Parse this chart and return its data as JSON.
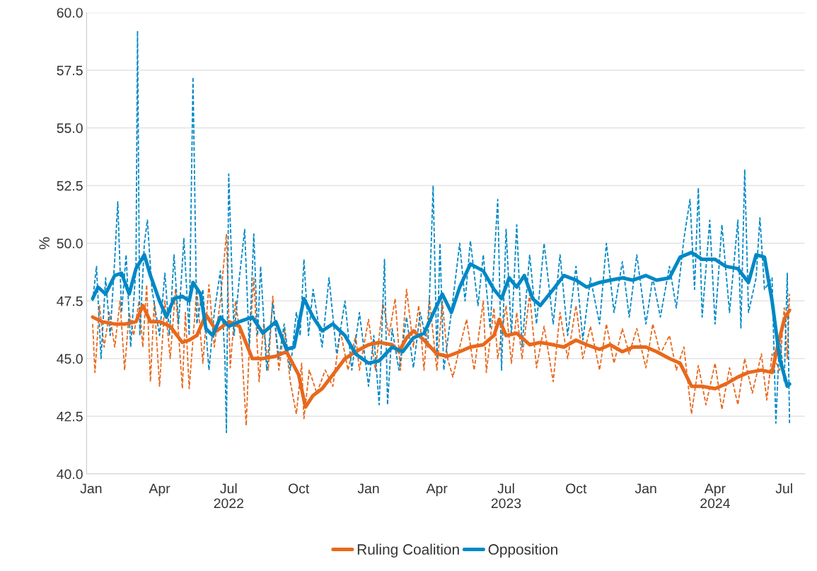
{
  "chart_data": {
    "type": "line",
    "ylabel": "%",
    "ylim": [
      40,
      60
    ],
    "yticks": [
      {
        "value": 40,
        "label": "40.0"
      },
      {
        "value": 42.5,
        "label": "42.5"
      },
      {
        "value": 45,
        "label": "45.0"
      },
      {
        "value": 47.5,
        "label": "47.5"
      },
      {
        "value": 50,
        "label": "50.0"
      },
      {
        "value": 52.5,
        "label": "52.5"
      },
      {
        "value": 55,
        "label": "55.0"
      },
      {
        "value": 57.5,
        "label": "57.5"
      },
      {
        "value": 60,
        "label": "60.0"
      }
    ],
    "xlim": [
      "2021-12-26",
      "2024-07-28"
    ],
    "xticks": [
      {
        "value": "2022-01-01",
        "label": "Jan"
      },
      {
        "value": "2022-04-01",
        "label": "Apr"
      },
      {
        "value": "2022-07-01",
        "label": "Jul\n2022"
      },
      {
        "value": "2022-10-01",
        "label": "Oct"
      },
      {
        "value": "2023-01-01",
        "label": "Jan"
      },
      {
        "value": "2023-04-01",
        "label": "Apr"
      },
      {
        "value": "2023-07-01",
        "label": "Jul\n2023"
      },
      {
        "value": "2023-10-01",
        "label": "Oct"
      },
      {
        "value": "2024-01-01",
        "label": "Jan"
      },
      {
        "value": "2024-04-01",
        "label": "Apr\n2024"
      },
      {
        "value": "2024-07-01",
        "label": "Jul"
      }
    ],
    "grid": "y",
    "legend": "bottom",
    "marker": "none",
    "series": [
      {
        "color": "#e8681c",
        "line_style": "dashed",
        "x": [
          "2022-01-03",
          "2022-01-06",
          "2022-01-12",
          "2022-01-18",
          "2022-01-25",
          "2022-02-01",
          "2022-02-08",
          "2022-02-14",
          "2022-02-20",
          "2022-02-26",
          "2022-03-05",
          "2022-03-10",
          "2022-03-15",
          "2022-03-20",
          "2022-03-25",
          "2022-04-01",
          "2022-04-08",
          "2022-04-15",
          "2022-04-22",
          "2022-05-01",
          "2022-05-05",
          "2022-05-10",
          "2022-05-20",
          "2022-05-28",
          "2022-06-05",
          "2022-06-12",
          "2022-06-20",
          "2022-06-28",
          "2022-07-03",
          "2022-07-10",
          "2022-07-18",
          "2022-07-24",
          "2022-07-28",
          "2022-08-03",
          "2022-08-10",
          "2022-08-16",
          "2022-08-22",
          "2022-08-28",
          "2022-09-05",
          "2022-09-12",
          "2022-09-20",
          "2022-09-28",
          "2022-10-05",
          "2022-10-08",
          "2022-10-15",
          "2022-10-25",
          "2022-11-05",
          "2022-11-15",
          "2022-11-25",
          "2022-12-05",
          "2022-12-15",
          "2022-12-20",
          "2023-01-01",
          "2023-01-10",
          "2023-01-20",
          "2023-01-28",
          "2023-02-05",
          "2023-02-12",
          "2023-02-20",
          "2023-03-01",
          "2023-03-08",
          "2023-03-15",
          "2023-03-22",
          "2023-04-01",
          "2023-04-08",
          "2023-04-15",
          "2023-04-22",
          "2023-05-01",
          "2023-05-10",
          "2023-05-20",
          "2023-06-01",
          "2023-06-05",
          "2023-06-15",
          "2023-06-20",
          "2023-07-01",
          "2023-07-08",
          "2023-07-15",
          "2023-07-22",
          "2023-08-01",
          "2023-08-10",
          "2023-08-20",
          "2023-09-01",
          "2023-09-10",
          "2023-09-20",
          "2023-10-01",
          "2023-10-10",
          "2023-10-20",
          "2023-11-01",
          "2023-11-10",
          "2023-11-20",
          "2023-12-01",
          "2023-12-10",
          "2023-12-20",
          "2024-01-01",
          "2024-01-10",
          "2024-01-20",
          "2024-02-01",
          "2024-02-10",
          "2024-02-20",
          "2024-03-01",
          "2024-03-10",
          "2024-03-20",
          "2024-04-01",
          "2024-04-10",
          "2024-04-20",
          "2024-05-01",
          "2024-05-10",
          "2024-05-20",
          "2024-06-01",
          "2024-06-08",
          "2024-06-15",
          "2024-06-25",
          "2024-07-01",
          "2024-07-05",
          "2024-07-08"
        ],
        "values": [
          46.5,
          44.4,
          47.3,
          45.5,
          47.0,
          45.5,
          47.5,
          44.5,
          47.0,
          46.0,
          47.5,
          45.5,
          48.2,
          44.0,
          47.5,
          43.8,
          47.5,
          45.0,
          48.0,
          43.7,
          47.0,
          43.7,
          48.0,
          44.8,
          48.2,
          45.5,
          47.5,
          50.4,
          44.6,
          47.5,
          45.5,
          42.1,
          45.5,
          48.5,
          44.0,
          46.5,
          44.5,
          47.7,
          44.5,
          46.3,
          44.0,
          42.6,
          44.8,
          42.4,
          44.5,
          43.5,
          44.5,
          43.8,
          46.2,
          44.5,
          46.0,
          44.5,
          46.7,
          44.5,
          47.4,
          46.0,
          47.6,
          44.5,
          48.0,
          45.5,
          47.3,
          44.5,
          47.6,
          44.5,
          47.5,
          45.0,
          44.2,
          45.5,
          46.7,
          44.5,
          47.5,
          44.4,
          47.2,
          45.0,
          47.3,
          44.8,
          47.0,
          45.0,
          47.8,
          44.6,
          46.4,
          44.0,
          47.0,
          45.0,
          47.3,
          45.0,
          46.4,
          44.5,
          46.5,
          44.8,
          46.3,
          45.2,
          46.3,
          44.6,
          46.5,
          45.2,
          46.0,
          44.5,
          45.5,
          42.6,
          44.7,
          43.0,
          44.8,
          42.8,
          44.6,
          43.0,
          45.0,
          43.5,
          45.2,
          43.2,
          45.2,
          44.5,
          47.2,
          45.0,
          47.8
        ]
      },
      {
        "color": "#0088c6",
        "line_style": "dashed",
        "x": [
          "2022-01-03",
          "2022-01-08",
          "2022-01-14",
          "2022-01-20",
          "2022-01-26",
          "2022-02-01",
          "2022-02-05",
          "2022-02-10",
          "2022-02-16",
          "2022-02-22",
          "2022-03-01",
          "2022-03-03",
          "2022-03-06",
          "2022-03-12",
          "2022-03-16",
          "2022-03-22",
          "2022-04-01",
          "2022-04-08",
          "2022-04-14",
          "2022-04-20",
          "2022-04-26",
          "2022-05-03",
          "2022-05-10",
          "2022-05-15",
          "2022-05-20",
          "2022-05-28",
          "2022-06-05",
          "2022-06-12",
          "2022-06-20",
          "2022-06-26",
          "2022-06-28",
          "2022-07-01",
          "2022-07-08",
          "2022-07-15",
          "2022-07-22",
          "2022-07-28",
          "2022-08-03",
          "2022-08-08",
          "2022-08-12",
          "2022-08-20",
          "2022-08-28",
          "2022-09-05",
          "2022-09-12",
          "2022-09-20",
          "2022-09-28",
          "2022-10-03",
          "2022-10-08",
          "2022-10-14",
          "2022-10-20",
          "2022-11-01",
          "2022-11-10",
          "2022-11-20",
          "2022-12-01",
          "2022-12-10",
          "2022-12-20",
          "2023-01-01",
          "2023-01-08",
          "2023-01-15",
          "2023-01-22",
          "2023-01-26",
          "2023-02-01",
          "2023-02-10",
          "2023-02-20",
          "2023-03-01",
          "2023-03-10",
          "2023-03-20",
          "2023-03-27",
          "2023-04-01",
          "2023-04-05",
          "2023-04-10",
          "2023-04-20",
          "2023-05-01",
          "2023-05-08",
          "2023-05-15",
          "2023-05-25",
          "2023-06-01",
          "2023-06-10",
          "2023-06-20",
          "2023-06-25",
          "2023-07-01",
          "2023-07-08",
          "2023-07-15",
          "2023-07-22",
          "2023-08-01",
          "2023-08-10",
          "2023-08-20",
          "2023-09-01",
          "2023-09-10",
          "2023-09-20",
          "2023-10-01",
          "2023-10-10",
          "2023-10-20",
          "2023-11-01",
          "2023-11-10",
          "2023-11-20",
          "2023-12-01",
          "2023-12-10",
          "2023-12-20",
          "2024-01-01",
          "2024-01-10",
          "2024-01-20",
          "2024-02-01",
          "2024-02-10",
          "2024-02-20",
          "2024-02-28",
          "2024-03-05",
          "2024-03-10",
          "2024-03-15",
          "2024-03-25",
          "2024-04-01",
          "2024-04-10",
          "2024-04-20",
          "2024-05-01",
          "2024-05-05",
          "2024-05-10",
          "2024-05-15",
          "2024-05-25",
          "2024-05-30",
          "2024-06-05",
          "2024-06-15",
          "2024-06-20",
          "2024-06-25",
          "2024-07-01",
          "2024-07-05",
          "2024-07-08"
        ],
        "values": [
          47.5,
          49.0,
          45.0,
          48.5,
          46.0,
          49.3,
          51.8,
          47.0,
          49.5,
          45.5,
          49.0,
          59.2,
          46.0,
          50.0,
          51.0,
          48.0,
          46.0,
          48.7,
          46.0,
          49.5,
          46.5,
          50.2,
          46.0,
          57.2,
          46.5,
          48.0,
          44.5,
          47.0,
          48.8,
          45.0,
          41.8,
          53.0,
          46.0,
          48.5,
          50.6,
          45.5,
          50.4,
          46.0,
          49.0,
          44.5,
          47.4,
          45.0,
          46.5,
          44.5,
          47.0,
          46.0,
          49.3,
          46.0,
          48.0,
          45.5,
          48.5,
          45.2,
          47.5,
          44.5,
          47.0,
          43.8,
          46.0,
          43.0,
          49.3,
          43.0,
          46.3,
          44.5,
          46.8,
          44.6,
          47.0,
          45.5,
          52.5,
          45.0,
          50.0,
          44.5,
          47.0,
          50.0,
          47.5,
          50.1,
          47.3,
          49.5,
          46.3,
          51.9,
          44.5,
          50.6,
          46.0,
          50.8,
          45.5,
          49.5,
          46.5,
          50.0,
          46.5,
          49.5,
          46.0,
          49.0,
          45.8,
          48.5,
          46.5,
          50.0,
          47.0,
          49.2,
          46.8,
          49.5,
          46.5,
          48.5,
          46.8,
          49.0,
          47.2,
          50.2,
          51.9,
          48.0,
          52.4,
          46.8,
          51.0,
          46.5,
          50.8,
          47.0,
          51.0,
          46.3,
          53.2,
          47.0,
          48.5,
          51.1,
          48.0,
          48.5,
          42.2,
          46.0,
          44.0,
          48.7,
          42.2
        ]
      },
      {
        "name": "Ruling Coalition",
        "color": "#e8681c",
        "line_style": "solid",
        "x": [
          "2022-01-03",
          "2022-01-15",
          "2022-02-01",
          "2022-02-15",
          "2022-03-01",
          "2022-03-10",
          "2022-03-20",
          "2022-04-01",
          "2022-04-15",
          "2022-05-01",
          "2022-05-10",
          "2022-05-20",
          "2022-06-01",
          "2022-06-15",
          "2022-07-01",
          "2022-07-15",
          "2022-08-01",
          "2022-08-15",
          "2022-09-01",
          "2022-09-15",
          "2022-10-01",
          "2022-10-10",
          "2022-10-20",
          "2022-11-01",
          "2022-11-15",
          "2022-12-01",
          "2022-12-15",
          "2023-01-01",
          "2023-01-15",
          "2023-02-01",
          "2023-02-10",
          "2023-02-20",
          "2023-03-01",
          "2023-03-15",
          "2023-04-01",
          "2023-04-15",
          "2023-05-01",
          "2023-05-15",
          "2023-06-01",
          "2023-06-15",
          "2023-06-22",
          "2023-07-01",
          "2023-07-15",
          "2023-08-01",
          "2023-08-15",
          "2023-09-01",
          "2023-09-15",
          "2023-10-01",
          "2023-10-15",
          "2023-11-01",
          "2023-11-15",
          "2023-12-01",
          "2023-12-15",
          "2024-01-01",
          "2024-01-15",
          "2024-02-01",
          "2024-02-15",
          "2024-03-01",
          "2024-03-15",
          "2024-04-01",
          "2024-04-15",
          "2024-05-01",
          "2024-05-15",
          "2024-06-01",
          "2024-06-15",
          "2024-06-22",
          "2024-07-01",
          "2024-07-08"
        ],
        "values": [
          46.8,
          46.6,
          46.5,
          46.5,
          46.6,
          47.3,
          46.6,
          46.6,
          46.4,
          45.7,
          45.8,
          46.0,
          46.9,
          46.2,
          46.6,
          46.4,
          45.0,
          45.0,
          45.1,
          45.3,
          44.3,
          42.9,
          43.4,
          43.7,
          44.3,
          45.0,
          45.3,
          45.6,
          45.7,
          45.6,
          45.3,
          45.9,
          46.2,
          45.8,
          45.2,
          45.1,
          45.3,
          45.5,
          45.6,
          46.0,
          46.7,
          46.0,
          46.1,
          45.6,
          45.7,
          45.6,
          45.5,
          45.8,
          45.6,
          45.4,
          45.6,
          45.3,
          45.5,
          45.5,
          45.3,
          45.0,
          44.8,
          43.8,
          43.8,
          43.7,
          43.9,
          44.2,
          44.4,
          44.5,
          44.4,
          45.5,
          46.7,
          47.1
        ]
      },
      {
        "name": "Opposition",
        "color": "#0088c6",
        "line_style": "solid",
        "x": [
          "2022-01-03",
          "2022-01-10",
          "2022-01-20",
          "2022-02-01",
          "2022-02-10",
          "2022-02-20",
          "2022-03-01",
          "2022-03-12",
          "2022-03-20",
          "2022-04-01",
          "2022-04-10",
          "2022-04-20",
          "2022-05-01",
          "2022-05-10",
          "2022-05-15",
          "2022-05-25",
          "2022-06-01",
          "2022-06-10",
          "2022-06-20",
          "2022-07-01",
          "2022-07-15",
          "2022-08-01",
          "2022-08-15",
          "2022-09-01",
          "2022-09-15",
          "2022-09-25",
          "2022-10-08",
          "2022-10-20",
          "2022-11-01",
          "2022-11-15",
          "2022-12-01",
          "2022-12-15",
          "2023-01-01",
          "2023-01-15",
          "2023-02-01",
          "2023-02-15",
          "2023-03-01",
          "2023-03-15",
          "2023-04-01",
          "2023-04-08",
          "2023-04-20",
          "2023-05-01",
          "2023-05-15",
          "2023-06-01",
          "2023-06-15",
          "2023-06-25",
          "2023-07-05",
          "2023-07-15",
          "2023-07-25",
          "2023-08-05",
          "2023-08-15",
          "2023-09-01",
          "2023-09-15",
          "2023-10-01",
          "2023-10-15",
          "2023-11-01",
          "2023-11-15",
          "2023-12-01",
          "2023-12-15",
          "2024-01-01",
          "2024-01-15",
          "2024-02-01",
          "2024-02-15",
          "2024-03-01",
          "2024-03-15",
          "2024-04-01",
          "2024-04-15",
          "2024-05-01",
          "2024-05-15",
          "2024-05-25",
          "2024-06-05",
          "2024-06-15",
          "2024-06-25",
          "2024-07-05",
          "2024-07-08"
        ],
        "values": [
          47.6,
          48.1,
          47.8,
          48.6,
          48.7,
          47.8,
          48.9,
          49.5,
          48.6,
          47.5,
          46.8,
          47.6,
          47.7,
          47.5,
          48.3,
          47.8,
          46.3,
          46.0,
          46.8,
          46.4,
          46.6,
          46.8,
          46.1,
          46.6,
          45.4,
          45.5,
          47.6,
          46.8,
          46.2,
          46.5,
          46.0,
          45.2,
          44.8,
          44.9,
          45.5,
          45.3,
          45.9,
          46.1,
          47.3,
          47.8,
          47.0,
          48.1,
          49.1,
          48.8,
          48.0,
          47.6,
          48.5,
          48.1,
          48.6,
          47.6,
          47.3,
          48.0,
          48.6,
          48.4,
          48.1,
          48.3,
          48.4,
          48.5,
          48.4,
          48.6,
          48.4,
          48.5,
          49.4,
          49.6,
          49.3,
          49.3,
          49.0,
          48.9,
          48.3,
          49.5,
          49.4,
          47.5,
          45.0,
          43.8,
          43.9
        ]
      }
    ]
  }
}
